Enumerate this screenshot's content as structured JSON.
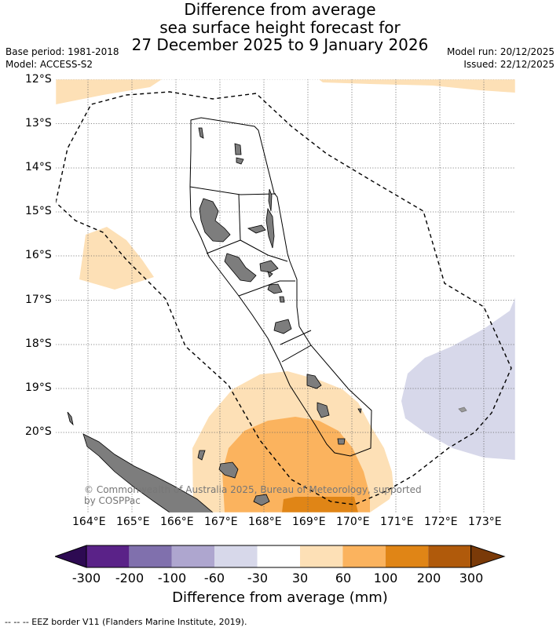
{
  "title": {
    "line1": "Difference from average",
    "line2": "sea surface height forecast for",
    "line3": "27 December 2025 to 9 January 2026"
  },
  "meta_left": {
    "base_period": "Base period: 1981-2018",
    "model": "Model: ACCESS-S2"
  },
  "meta_right": {
    "model_run": "Model run: 20/12/2025",
    "issued": "Issued: 22/12/2025"
  },
  "map": {
    "lat_labels": [
      "12°S",
      "13°S",
      "14°S",
      "15°S",
      "16°S",
      "17°S",
      "18°S",
      "19°S",
      "20°S"
    ],
    "lon_labels": [
      "164°E",
      "165°E",
      "166°E",
      "167°E",
      "168°E",
      "169°E",
      "170°E",
      "171°E",
      "172°E",
      "173°E"
    ],
    "copyright_line1": "© Commonwealth of Australia 2025, Bureau of Meteorology, supported",
    "copyright_line2": "by COSPPac"
  },
  "colorbar": {
    "ticks": [
      "-300",
      "-200",
      "-100",
      "-60",
      "-30",
      "30",
      "60",
      "100",
      "200",
      "300"
    ],
    "title": "Difference from average (mm)",
    "colors": [
      "#2d0a52",
      "#5a2288",
      "#8070ad",
      "#aea6cf",
      "#d7d8ea",
      "#ffffff",
      "#fde0b6",
      "#fbb35e",
      "#e08516",
      "#b05a0b",
      "#7a3a08"
    ]
  },
  "footer": "--  --  -- EEZ border V11 (Flanders Marine Institute, 2019)."
}
